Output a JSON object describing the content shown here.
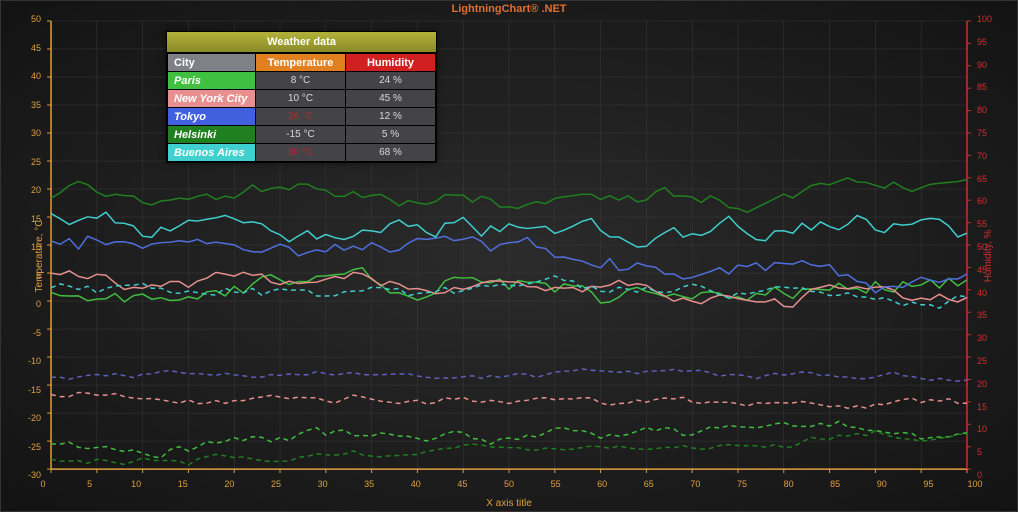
{
  "title": "LightningChart® .NET",
  "axes": {
    "xLabel": "X axis title",
    "yLeftLabel": "Temperature, °C",
    "yRightLabel": "Humidity, %",
    "xMin": 0,
    "xMax": 100,
    "xTickStep": 5,
    "yLeftMin": -30,
    "yLeftMax": 50,
    "yLeftTickStep": 5,
    "yRightMin": 0,
    "yRightMax": 100,
    "yRightTickStep": 5,
    "gridColor": "#3a3a3a",
    "axisColorLeft": "#e0a040",
    "axisColorRight": "#d03030",
    "background": "#1e1e1e"
  },
  "legend": {
    "title": "Weather data",
    "headers": {
      "city": "City",
      "temperature": "Temperature",
      "humidity": "Humidity"
    },
    "rows": [
      {
        "city": "Paris",
        "color": "#40c040",
        "temp": "8 °C",
        "tempColor": "#d8d8d8",
        "hum": "24 %"
      },
      {
        "city": "New York City",
        "color": "#e89090",
        "temp": "10 °C",
        "tempColor": "#d8d8d8",
        "hum": "45 %"
      },
      {
        "city": "Tokyo",
        "color": "#4060e0",
        "temp": "26 °C",
        "tempColor": "#a03030",
        "hum": "12 %"
      },
      {
        "city": "Helsinki",
        "color": "#208020",
        "temp": "-15 °C",
        "tempColor": "#d8d8d8",
        "hum": "5 %"
      },
      {
        "city": "Buenos Aires",
        "color": "#40d0d0",
        "temp": "30 °C",
        "tempColor": "#a03030",
        "hum": "68 %"
      }
    ]
  },
  "series": [
    {
      "name": "Paris-temp",
      "axis": "left",
      "color": "#40c040",
      "dash": false,
      "width": 1.5,
      "seed": 11,
      "base": 2,
      "amp": 4,
      "trend": 0
    },
    {
      "name": "Paris-hum",
      "axis": "right",
      "color": "#40c040",
      "dash": true,
      "width": 1.5,
      "seed": 12,
      "base": 6,
      "amp": 3,
      "trend": 0.02
    },
    {
      "name": "NYC-temp",
      "axis": "left",
      "color": "#e89090",
      "dash": false,
      "width": 1.5,
      "seed": 21,
      "base": 4,
      "amp": 3,
      "trend": -0.04
    },
    {
      "name": "NYC-hum",
      "axis": "right",
      "color": "#e89090",
      "dash": true,
      "width": 1.5,
      "seed": 22,
      "base": 16,
      "amp": 2,
      "trend": -0.02
    },
    {
      "name": "Tokyo-temp",
      "axis": "left",
      "color": "#5070e0",
      "dash": false,
      "width": 1.5,
      "seed": 31,
      "base": 12,
      "amp": 4,
      "trend": -0.08
    },
    {
      "name": "Tokyo-hum",
      "axis": "right",
      "color": "#6060c0",
      "dash": true,
      "width": 1.5,
      "seed": 32,
      "base": 21,
      "amp": 1.5,
      "trend": 0
    },
    {
      "name": "Helsinki-temp",
      "axis": "left",
      "color": "#208020",
      "dash": false,
      "width": 1.5,
      "seed": 41,
      "base": 18,
      "amp": 3,
      "trend": 0.02
    },
    {
      "name": "Helsinki-hum",
      "axis": "right",
      "color": "#208020",
      "dash": true,
      "width": 1.5,
      "seed": 42,
      "base": 2,
      "amp": 2,
      "trend": 0.06
    },
    {
      "name": "BA-temp",
      "axis": "left",
      "color": "#40d0d0",
      "dash": false,
      "width": 1.5,
      "seed": 51,
      "base": 15,
      "amp": 4,
      "trend": -0.03
    },
    {
      "name": "BA-hum",
      "axis": "right",
      "color": "#40d0d0",
      "dash": true,
      "width": 1.5,
      "seed": 52,
      "base": 40,
      "amp": 3,
      "trend": -0.02
    }
  ],
  "plotPoints": 101
}
